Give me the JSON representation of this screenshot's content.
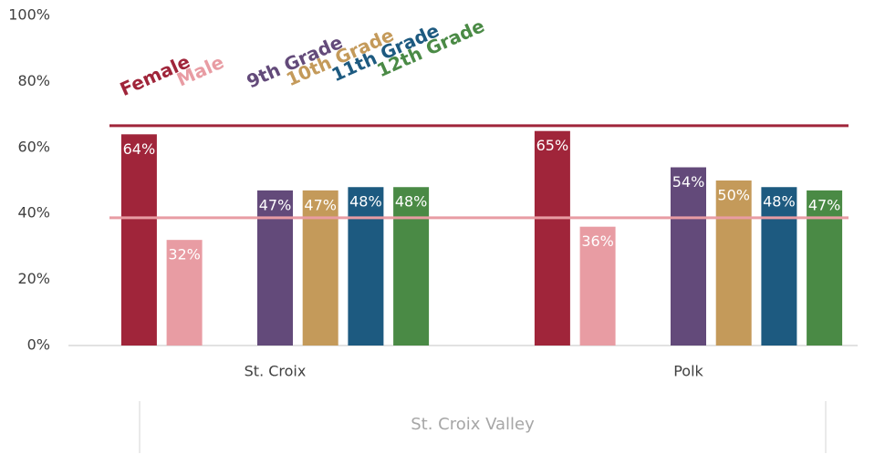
{
  "chart_data": {
    "type": "bar",
    "categories": [
      "St. Croix",
      "Polk"
    ],
    "group_label": "St. Croix Valley",
    "series": [
      {
        "name": "Female",
        "color": "#a0253a",
        "values": [
          64,
          65
        ],
        "value_labels": [
          "64%",
          "65%"
        ]
      },
      {
        "name": "Male",
        "color": "#e89ca3",
        "values": [
          32,
          36
        ],
        "value_labels": [
          "32%",
          "36%"
        ]
      },
      {
        "name": "9th Grade",
        "color": "#634a7a",
        "values": [
          47,
          54
        ],
        "value_labels": [
          "47%",
          "54%"
        ]
      },
      {
        "name": "10th Grade",
        "color": "#c49a5a",
        "values": [
          47,
          50
        ],
        "value_labels": [
          "47%",
          "50%"
        ]
      },
      {
        "name": "11th Grade",
        "color": "#1d5a80",
        "values": [
          48,
          48
        ],
        "value_labels": [
          "48%",
          "48%"
        ]
      },
      {
        "name": "12th Grade",
        "color": "#4a8a45",
        "values": [
          48,
          47
        ],
        "value_labels": [
          "48%",
          "47%"
        ]
      }
    ],
    "reference_lines": [
      {
        "value": 66.6,
        "color": "#a0253a"
      },
      {
        "value": 38.7,
        "color": "#e89ca3"
      }
    ],
    "ylim": [
      0,
      100
    ],
    "yticks": [
      {
        "value": 0,
        "label": "0%"
      },
      {
        "value": 20,
        "label": "20%"
      },
      {
        "value": 40,
        "label": "40%"
      },
      {
        "value": 60,
        "label": "60%"
      },
      {
        "value": 80,
        "label": "80%"
      },
      {
        "value": 100,
        "label": "100%"
      }
    ],
    "grid": false
  }
}
